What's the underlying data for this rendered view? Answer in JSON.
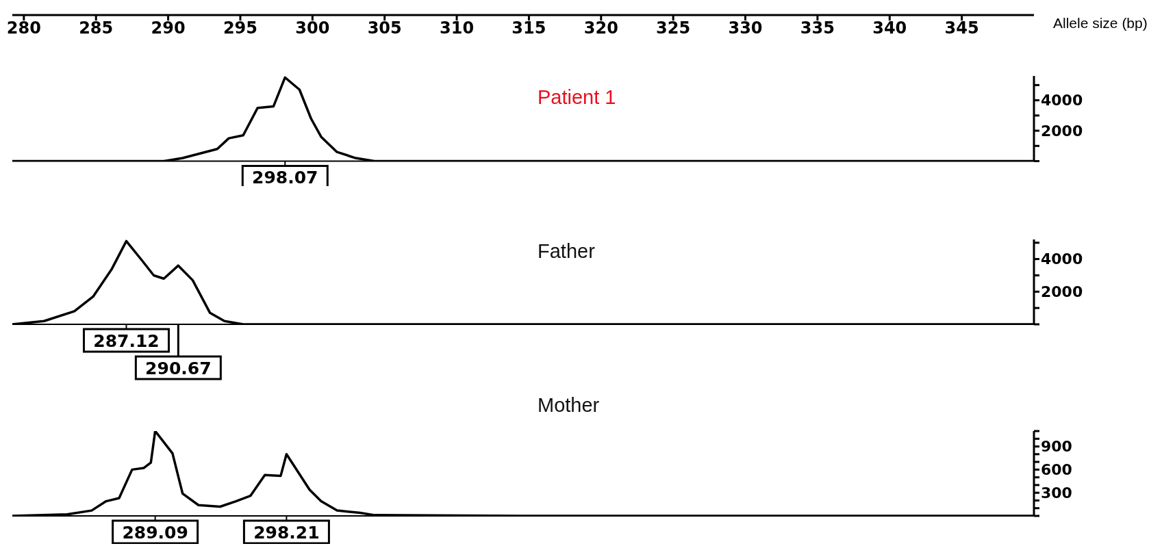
{
  "chart_data": [
    {
      "type": "line",
      "title": "Patient 1",
      "xlabel": "Allele size (bp)",
      "xlim": [
        279.2,
        350
      ],
      "ylim": [
        0,
        5600
      ],
      "xticks": [
        280,
        285,
        290,
        295,
        300,
        305,
        310,
        315,
        320,
        325,
        330,
        335,
        340,
        345
      ],
      "yticks": [
        {
          "value": 0,
          "label": null
        },
        {
          "value": 1000,
          "label": null
        },
        2000,
        {
          "value": 3000,
          "label": null
        },
        4000,
        {
          "value": 5000,
          "label": null
        }
      ],
      "x": [
        279.2,
        289.7,
        291.0,
        293.4,
        294.2,
        295.2,
        296.2,
        297.3,
        298.1,
        299.1,
        299.9,
        300.6,
        301.7,
        303.0,
        304.3,
        305.6,
        350
      ],
      "series": [
        {
          "color": "#000000",
          "values": [
            0,
            0,
            200,
            800,
            1500,
            1700,
            3500,
            3600,
            5500,
            4700,
            2800,
            1600,
            600,
            200,
            0,
            0,
            0
          ]
        }
      ],
      "annotations": [
        "298.07"
      ]
    },
    {
      "type": "line",
      "title": "Father",
      "xlim": [
        279.2,
        350
      ],
      "ylim": [
        0,
        5200
      ],
      "tick_labels": "y",
      "yticks": [
        {
          "value": 0,
          "label": null
        },
        {
          "value": 1000,
          "label": null
        },
        2000,
        {
          "value": 3000,
          "label": null
        },
        4000,
        {
          "value": 5000,
          "label": null
        }
      ],
      "x": [
        279.2,
        281.4,
        283.5,
        284.8,
        286.1,
        287.1,
        288.2,
        289.0,
        289.7,
        290.7,
        291.7,
        292.9,
        293.9,
        295.2,
        350
      ],
      "series": [
        {
          "color": "#000000",
          "values": [
            0,
            200,
            800,
            1700,
            3400,
            5100,
            3900,
            3000,
            2800,
            3600,
            2700,
            700,
            200,
            0,
            0
          ]
        }
      ],
      "annotations": [
        "287.12",
        "290.67"
      ]
    },
    {
      "type": "line",
      "title": "Mother",
      "xlim": [
        279.2,
        350
      ],
      "ylim": [
        0,
        1100
      ],
      "tick_labels": "y",
      "yticks": [
        {
          "value": 0,
          "label": null
        },
        {
          "value": 100,
          "label": null
        },
        {
          "value": 200,
          "label": null
        },
        300,
        {
          "value": 400,
          "label": null
        },
        {
          "value": 500,
          "label": null
        },
        600,
        {
          "value": 700,
          "label": null
        },
        {
          "value": 800,
          "label": null
        },
        900,
        {
          "value": 1000,
          "label": null
        },
        {
          "value": 1100,
          "label": null
        }
      ],
      "x": [
        279.2,
        283.0,
        284.7,
        285.7,
        286.6,
        287.5,
        288.3,
        288.8,
        289.1,
        290.3,
        291.0,
        292.1,
        293.6,
        294.7,
        295.7,
        296.7,
        297.8,
        298.2,
        299.8,
        300.6,
        301.7,
        303.3,
        304.3,
        315,
        330,
        345,
        350
      ],
      "series": [
        {
          "color": "#000000",
          "values": [
            0,
            20,
            70,
            190,
            230,
            600,
            620,
            690,
            1100,
            810,
            290,
            140,
            120,
            190,
            260,
            530,
            520,
            800,
            340,
            190,
            70,
            40,
            10,
            0,
            0,
            0,
            0
          ]
        }
      ],
      "annotations": [
        "289.09",
        "298.21"
      ]
    }
  ]
}
